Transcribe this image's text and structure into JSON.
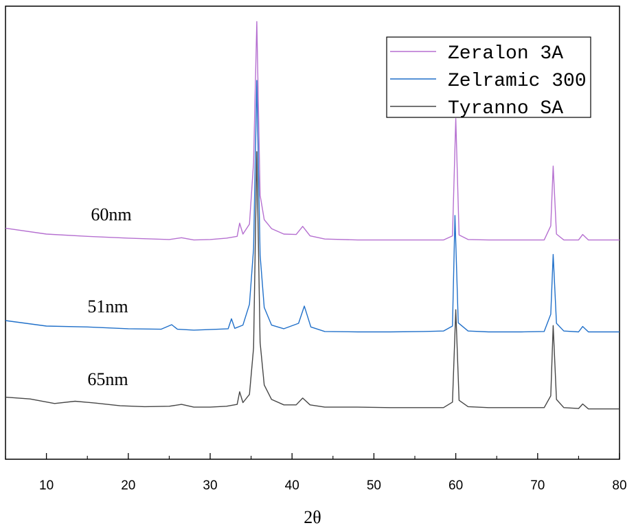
{
  "chart_data": {
    "type": "line",
    "title": "",
    "xlabel": "2θ",
    "ylabel": "",
    "xlim": [
      5,
      80
    ],
    "ylim": [
      0,
      1
    ],
    "x_ticks": [
      10,
      20,
      30,
      40,
      50,
      60,
      70,
      80
    ],
    "x_tick_labels": [
      "10",
      "20",
      "30",
      "40",
      "50",
      "60",
      "70",
      "80"
    ],
    "y_ticks_shown": false,
    "grid": false,
    "legend_position": "top-right",
    "legend": [
      "Zeralon 3A",
      "Zelramic 300",
      "Tyranno SA"
    ],
    "series": [
      {
        "name": "Zeralon 3A",
        "color": "#b56fd0",
        "annotation": "60nm",
        "x": [
          5,
          10,
          15,
          20,
          25,
          26.5,
          28,
          30,
          32,
          33.3,
          33.6,
          34,
          34.8,
          35.3,
          35.7,
          36.1,
          36.6,
          37.5,
          39,
          40.5,
          41.3,
          42.2,
          44,
          48,
          52,
          56,
          58.5,
          59.6,
          60.0,
          60.4,
          61.5,
          64,
          68,
          70.8,
          71.6,
          71.9,
          72.3,
          73.2,
          75,
          75.5,
          76.2,
          78,
          80
        ],
        "y": [
          0.51,
          0.497,
          0.492,
          0.488,
          0.485,
          0.489,
          0.484,
          0.485,
          0.488,
          0.492,
          0.521,
          0.497,
          0.519,
          0.655,
          0.966,
          0.583,
          0.529,
          0.509,
          0.497,
          0.496,
          0.514,
          0.493,
          0.486,
          0.484,
          0.484,
          0.484,
          0.484,
          0.493,
          0.752,
          0.495,
          0.485,
          0.484,
          0.484,
          0.484,
          0.515,
          0.647,
          0.497,
          0.484,
          0.484,
          0.496,
          0.484,
          0.484,
          0.484
        ]
      },
      {
        "name": "Zelramic 300",
        "color": "#1f6fc9",
        "annotation": "51nm",
        "x": [
          5,
          10,
          15,
          20,
          24,
          25.3,
          26,
          28,
          31,
          32.2,
          32.6,
          33,
          34,
          34.8,
          35.3,
          35.7,
          36.1,
          36.6,
          37.5,
          39,
          40.8,
          41.5,
          42.3,
          44,
          48,
          52,
          56,
          58.5,
          59.6,
          59.9,
          60.3,
          61.5,
          64,
          68,
          70.8,
          71.6,
          71.9,
          72.3,
          73.2,
          75,
          75.5,
          76.2,
          78,
          80
        ],
        "y": [
          0.306,
          0.294,
          0.292,
          0.288,
          0.287,
          0.297,
          0.287,
          0.285,
          0.287,
          0.288,
          0.31,
          0.289,
          0.296,
          0.342,
          0.465,
          0.836,
          0.451,
          0.335,
          0.296,
          0.288,
          0.3,
          0.338,
          0.292,
          0.282,
          0.281,
          0.281,
          0.282,
          0.283,
          0.294,
          0.538,
          0.301,
          0.283,
          0.281,
          0.281,
          0.282,
          0.32,
          0.452,
          0.3,
          0.283,
          0.281,
          0.293,
          0.281,
          0.281,
          0.281
        ]
      },
      {
        "name": "Tyranno SA",
        "color": "#454545",
        "annotation": "65nm",
        "x": [
          5,
          8,
          11,
          13.5,
          16,
          19,
          22,
          25,
          26.5,
          28,
          30,
          32,
          33.3,
          33.6,
          34,
          34.8,
          35.3,
          35.7,
          36.1,
          36.6,
          37.5,
          39,
          40.5,
          41.3,
          42.2,
          44,
          48,
          52,
          56,
          58.5,
          59.6,
          60.0,
          60.4,
          61.5,
          64,
          68,
          70.8,
          71.6,
          71.9,
          72.3,
          73.2,
          75,
          75.5,
          76.2,
          78,
          80
        ],
        "y": [
          0.137,
          0.133,
          0.123,
          0.128,
          0.124,
          0.118,
          0.116,
          0.117,
          0.121,
          0.115,
          0.115,
          0.117,
          0.121,
          0.149,
          0.125,
          0.143,
          0.246,
          0.679,
          0.258,
          0.164,
          0.132,
          0.12,
          0.12,
          0.135,
          0.12,
          0.115,
          0.115,
          0.114,
          0.114,
          0.114,
          0.126,
          0.33,
          0.13,
          0.116,
          0.114,
          0.114,
          0.114,
          0.14,
          0.295,
          0.132,
          0.114,
          0.112,
          0.122,
          0.111,
          0.111,
          0.111
        ]
      }
    ]
  }
}
